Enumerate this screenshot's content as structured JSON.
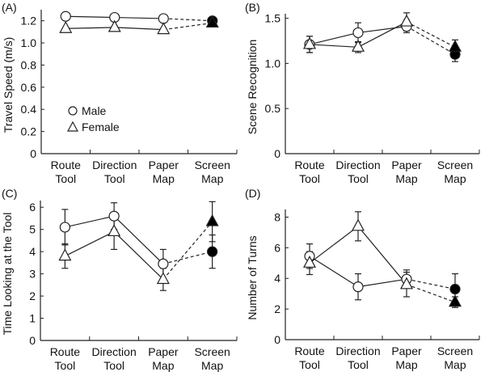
{
  "chart_data": [
    {
      "type": "line",
      "panel_label": "(A)",
      "ylabel": "Travel Speed (m/s)",
      "categories": [
        "Route Tool",
        "Direction Tool",
        "Paper Map",
        "Screen Map"
      ],
      "ylim": [
        0,
        1.3
      ],
      "yticks": [
        0,
        0.2,
        0.4,
        0.6,
        0.8,
        1.0,
        1.2
      ],
      "ytick_labels": [
        "0",
        "0.2",
        "0.4",
        "0.6",
        "0.8",
        "1.0",
        "1.2"
      ],
      "legend": {
        "placement": "lower-left",
        "entries": [
          "Male",
          "Female"
        ]
      },
      "series": [
        {
          "name": "Male",
          "marker": "circle",
          "values": [
            1.24,
            1.23,
            1.22,
            1.2
          ],
          "errors": [
            0.01,
            0.01,
            0.01,
            0.01
          ]
        },
        {
          "name": "Female",
          "marker": "triangle",
          "values": [
            1.13,
            1.14,
            1.12,
            1.18
          ],
          "errors": [
            0.01,
            0.01,
            0.01,
            0.01
          ]
        }
      ],
      "filled_dashed_category": "Screen Map"
    },
    {
      "type": "line",
      "panel_label": "(B)",
      "ylabel": "Scene Recognition",
      "categories": [
        "Route Tool",
        "Direction Tool",
        "Paper Map",
        "Screen Map"
      ],
      "ylim": [
        0,
        1.55
      ],
      "yticks": [
        0,
        0.5,
        1.0,
        1.5
      ],
      "ytick_labels": [
        "0",
        "0.5",
        "1.0",
        "1.5"
      ],
      "series": [
        {
          "name": "Male",
          "marker": "circle",
          "values": [
            1.21,
            1.34,
            1.41,
            1.1
          ],
          "errors": [
            0.09,
            0.11,
            0.07,
            0.08
          ]
        },
        {
          "name": "Female",
          "marker": "triangle",
          "values": [
            1.21,
            1.18,
            1.46,
            1.18
          ],
          "errors": [
            0.09,
            0.06,
            0.1,
            0.08
          ]
        }
      ],
      "filled_dashed_category": "Screen Map"
    },
    {
      "type": "line",
      "panel_label": "(C)",
      "ylabel": "Time Looking at the Tool",
      "categories": [
        "Route Tool",
        "Direction Tool",
        "Paper Map",
        "Screen Map"
      ],
      "ylim": [
        0,
        6.3
      ],
      "yticks": [
        0,
        1,
        2,
        3,
        4,
        5,
        6
      ],
      "ytick_labels": [
        "0",
        "1",
        "2",
        "3",
        "4",
        "5",
        "6"
      ],
      "series": [
        {
          "name": "Male",
          "marker": "circle",
          "values": [
            5.1,
            5.6,
            3.45,
            4.0
          ],
          "errors": [
            0.8,
            0.6,
            0.65,
            0.75
          ]
        },
        {
          "name": "Female",
          "marker": "triangle",
          "values": [
            3.8,
            4.9,
            2.75,
            5.35
          ],
          "errors": [
            0.55,
            0.8,
            0.5,
            0.9
          ]
        }
      ],
      "filled_dashed_category": "Screen Map"
    },
    {
      "type": "line",
      "panel_label": "(D)",
      "ylabel": "Number of Turns",
      "categories": [
        "Route Tool",
        "Direction Tool",
        "Paper Map",
        "Screen Map"
      ],
      "ylim": [
        0,
        8.5
      ],
      "yticks": [
        0,
        2,
        4,
        6,
        8
      ],
      "ytick_labels": [
        "0",
        "2",
        "4",
        "6",
        "8"
      ],
      "series": [
        {
          "name": "Male",
          "marker": "circle",
          "values": [
            5.45,
            3.45,
            3.95,
            3.3
          ],
          "errors": [
            0.8,
            0.85,
            0.6,
            1.0
          ]
        },
        {
          "name": "Female",
          "marker": "triangle",
          "values": [
            5.0,
            7.4,
            3.6,
            2.45
          ],
          "errors": [
            0.75,
            0.95,
            0.8,
            0.35
          ]
        }
      ],
      "filled_dashed_category": "Screen Map"
    }
  ]
}
